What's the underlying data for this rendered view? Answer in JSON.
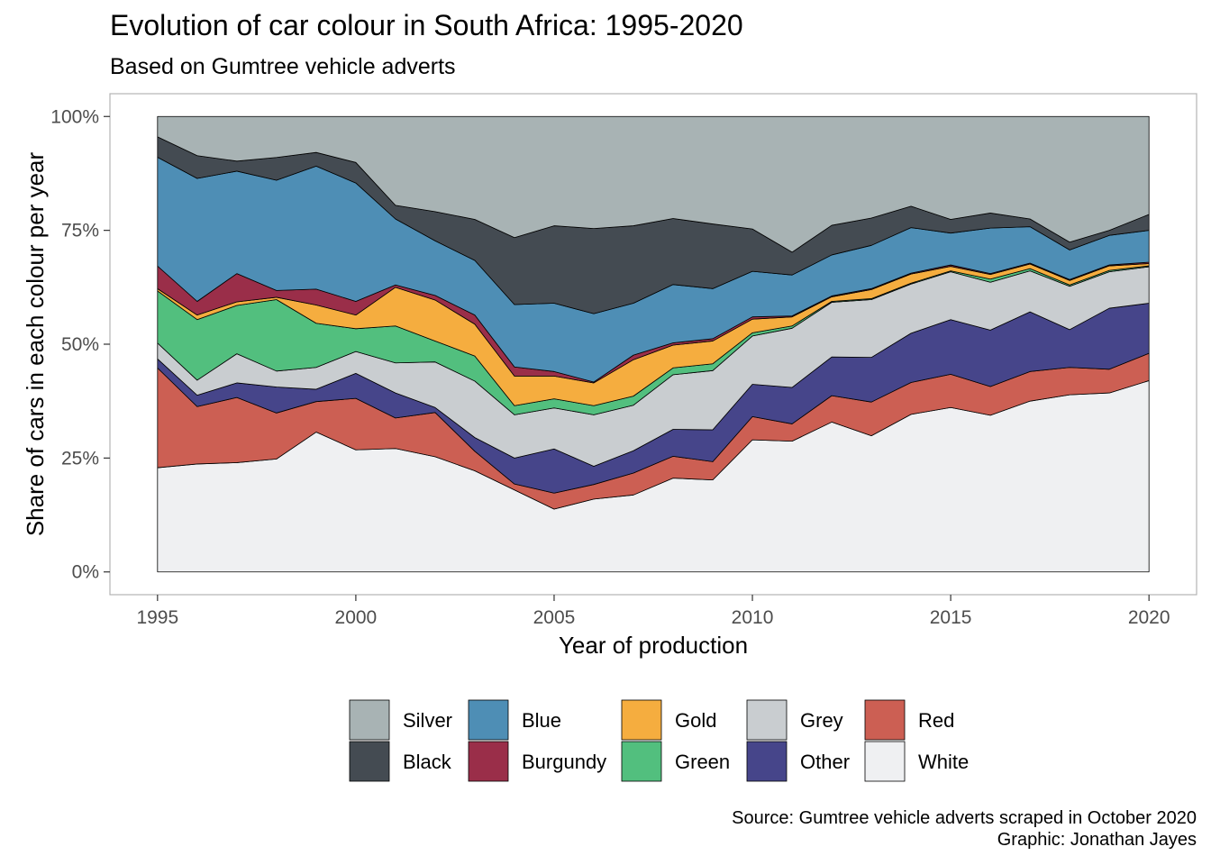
{
  "chart_data": {
    "type": "area",
    "stacked": true,
    "normalized": true,
    "title": "Evolution of car colour in South Africa: 1995-2020",
    "subtitle": "Based on Gumtree vehicle adverts",
    "xlabel": "Year of production",
    "ylabel": "Share of cars in each colour per year",
    "x": [
      1995,
      1996,
      1997,
      1998,
      1999,
      2000,
      2001,
      2002,
      2003,
      2004,
      2005,
      2006,
      2007,
      2008,
      2009,
      2010,
      2011,
      2012,
      2013,
      2014,
      2015,
      2016,
      2017,
      2018,
      2019,
      2020
    ],
    "xlim": [
      1993.8,
      2021.2
    ],
    "ylim": [
      -0.05,
      1.05
    ],
    "x_ticks": [
      1995,
      2000,
      2005,
      2010,
      2015,
      2020
    ],
    "x_tick_labels": [
      "1995",
      "2000",
      "2005",
      "2010",
      "2015",
      "2020"
    ],
    "y_ticks": [
      0,
      0.25,
      0.5,
      0.75,
      1.0
    ],
    "y_tick_labels": [
      "0%",
      "25%",
      "50%",
      "75%",
      "100%"
    ],
    "grid": false,
    "legend_position": "bottom",
    "stack_order_bottom_to_top": [
      "White",
      "Red",
      "Other",
      "Grey",
      "Green",
      "Gold",
      "Burgundy",
      "Blue",
      "Black",
      "Silver"
    ],
    "series": [
      {
        "name": "White",
        "color": "#EFF0F2",
        "values": [
          0.23,
          0.237,
          0.24,
          0.248,
          0.307,
          0.268,
          0.271,
          0.253,
          0.222,
          0.18,
          0.138,
          0.16,
          0.169,
          0.206,
          0.202,
          0.29,
          0.287,
          0.329,
          0.299,
          0.346,
          0.361,
          0.344,
          0.375,
          0.389,
          0.393,
          0.42
        ]
      },
      {
        "name": "Red",
        "color": "#CC5F53",
        "values": [
          0.22,
          0.126,
          0.143,
          0.101,
          0.067,
          0.113,
          0.067,
          0.097,
          0.043,
          0.013,
          0.035,
          0.032,
          0.048,
          0.048,
          0.04,
          0.051,
          0.038,
          0.058,
          0.074,
          0.07,
          0.073,
          0.063,
          0.065,
          0.06,
          0.052,
          0.06
        ]
      },
      {
        "name": "Other",
        "color": "#46458A",
        "values": [
          0.02,
          0.025,
          0.032,
          0.057,
          0.027,
          0.055,
          0.055,
          0.011,
          0.03,
          0.057,
          0.097,
          0.04,
          0.049,
          0.059,
          0.07,
          0.071,
          0.08,
          0.085,
          0.098,
          0.108,
          0.12,
          0.124,
          0.131,
          0.083,
          0.134,
          0.11
        ]
      },
      {
        "name": "Grey",
        "color": "#C9CDD0",
        "values": [
          0.035,
          0.033,
          0.064,
          0.035,
          0.048,
          0.048,
          0.066,
          0.1,
          0.124,
          0.095,
          0.09,
          0.113,
          0.1,
          0.12,
          0.13,
          0.106,
          0.13,
          0.12,
          0.127,
          0.108,
          0.105,
          0.105,
          0.09,
          0.095,
          0.08,
          0.08
        ]
      },
      {
        "name": "Green",
        "color": "#52BF7E",
        "values": [
          0.115,
          0.133,
          0.106,
          0.157,
          0.097,
          0.05,
          0.081,
          0.046,
          0.055,
          0.02,
          0.02,
          0.02,
          0.02,
          0.015,
          0.015,
          0.007,
          0.005,
          0.002,
          0.002,
          0.002,
          0.002,
          0.007,
          0.005,
          0.003,
          0.003,
          0.002
        ]
      },
      {
        "name": "Gold",
        "color": "#F5AD3F",
        "values": [
          0.005,
          0.01,
          0.008,
          0.005,
          0.04,
          0.03,
          0.085,
          0.09,
          0.07,
          0.065,
          0.05,
          0.05,
          0.08,
          0.05,
          0.05,
          0.03,
          0.02,
          0.01,
          0.02,
          0.02,
          0.01,
          0.01,
          0.01,
          0.01,
          0.01,
          0.005
        ]
      },
      {
        "name": "Burgundy",
        "color": "#9A2E49",
        "values": [
          0.05,
          0.03,
          0.062,
          0.015,
          0.035,
          0.03,
          0.005,
          0.01,
          0.02,
          0.02,
          0.01,
          0.002,
          0.01,
          0.005,
          0.005,
          0.005,
          0.002,
          0.002,
          0.002,
          0.002,
          0.003,
          0.002,
          0.002,
          0.002,
          0.002,
          0.003
        ]
      },
      {
        "name": "Blue",
        "color": "#4E8EB5",
        "values": [
          0.24,
          0.27,
          0.225,
          0.242,
          0.27,
          0.26,
          0.145,
          0.12,
          0.12,
          0.137,
          0.15,
          0.15,
          0.114,
          0.128,
          0.11,
          0.1,
          0.09,
          0.09,
          0.095,
          0.1,
          0.07,
          0.1,
          0.08,
          0.065,
          0.065,
          0.07
        ]
      },
      {
        "name": "Black",
        "color": "#444B52",
        "values": [
          0.045,
          0.05,
          0.022,
          0.05,
          0.03,
          0.045,
          0.03,
          0.064,
          0.09,
          0.147,
          0.17,
          0.187,
          0.17,
          0.145,
          0.142,
          0.093,
          0.05,
          0.065,
          0.06,
          0.047,
          0.03,
          0.033,
          0.017,
          0.017,
          0.011,
          0.035
        ]
      },
      {
        "name": "Silver",
        "color": "#A8B3B4",
        "values": [
          0.045,
          0.086,
          0.098,
          0.09,
          0.079,
          0.101,
          0.195,
          0.209,
          0.226,
          0.266,
          0.24,
          0.246,
          0.24,
          0.224,
          0.236,
          0.247,
          0.298,
          0.239,
          0.223,
          0.197,
          0.226,
          0.212,
          0.225,
          0.276,
          0.25,
          0.215
        ]
      }
    ]
  },
  "legend": {
    "items": [
      {
        "label": "Silver",
        "color": "#A8B3B4"
      },
      {
        "label": "Blue",
        "color": "#4E8EB5"
      },
      {
        "label": "Gold",
        "color": "#F5AD3F"
      },
      {
        "label": "Grey",
        "color": "#C9CDD0"
      },
      {
        "label": "Red",
        "color": "#CC5F53"
      },
      {
        "label": "Black",
        "color": "#444B52"
      },
      {
        "label": "Burgundy",
        "color": "#9A2E49"
      },
      {
        "label": "Green",
        "color": "#52BF7E"
      },
      {
        "label": "Other",
        "color": "#46458A"
      },
      {
        "label": "White",
        "color": "#EFF0F2"
      }
    ]
  },
  "caption": {
    "source": "Source: Gumtree vehicle adverts scraped in October 2020",
    "credit": "Graphic: Jonathan Jayes"
  }
}
